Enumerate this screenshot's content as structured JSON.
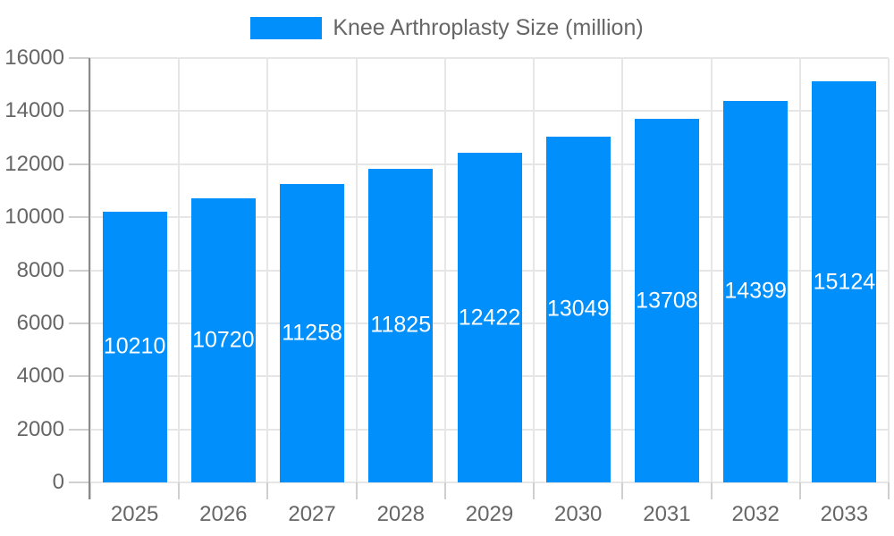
{
  "chart_data": {
    "type": "bar",
    "title": "",
    "legend": "Knee Arthroplasty Size (million)",
    "legend_position": "top",
    "categories": [
      "2025",
      "2026",
      "2027",
      "2028",
      "2029",
      "2030",
      "2031",
      "2032",
      "2033"
    ],
    "series": [
      {
        "name": "Knee Arthroplasty Size (million)",
        "values": [
          10210,
          10720,
          11258,
          11825,
          12422,
          13049,
          13708,
          14399,
          15124
        ]
      }
    ],
    "value_labels": [
      "10210",
      "10720",
      "11258",
      "11825",
      "12422",
      "13049",
      "13708",
      "14399",
      "15124"
    ],
    "xlabel": "",
    "ylabel": "",
    "ylim": [
      0,
      16000
    ],
    "ytick_step": 2000,
    "ytick_labels": [
      "0",
      "2000",
      "4000",
      "6000",
      "8000",
      "10000",
      "12000",
      "14000",
      "16000"
    ],
    "grid": true,
    "colors": {
      "bar": "#008FFB",
      "tick_text": "#666666",
      "grid_line": "#e6e6e6",
      "tick_mark": "#cfcfcf",
      "axis_line": "#8a8a8a",
      "value_label": "#ffffff"
    }
  }
}
